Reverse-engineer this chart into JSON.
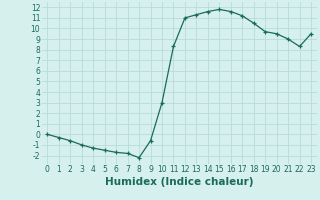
{
  "x": [
    0,
    1,
    2,
    3,
    4,
    5,
    6,
    7,
    8,
    9,
    10,
    11,
    12,
    13,
    14,
    15,
    16,
    17,
    18,
    19,
    20,
    21,
    22,
    23
  ],
  "y": [
    0.0,
    -0.3,
    -0.6,
    -1.0,
    -1.3,
    -1.5,
    -1.7,
    -1.8,
    -2.2,
    -0.6,
    3.0,
    8.3,
    11.0,
    11.3,
    11.6,
    11.8,
    11.6,
    11.2,
    10.5,
    9.7,
    9.5,
    9.0,
    8.3,
    9.5
  ],
  "xlabel": "Humidex (Indice chaleur)",
  "xlim": [
    -0.5,
    23.5
  ],
  "ylim": [
    -2.8,
    12.5
  ],
  "yticks": [
    -2,
    -1,
    0,
    1,
    2,
    3,
    4,
    5,
    6,
    7,
    8,
    9,
    10,
    11,
    12
  ],
  "xticks": [
    0,
    1,
    2,
    3,
    4,
    5,
    6,
    7,
    8,
    9,
    10,
    11,
    12,
    13,
    14,
    15,
    16,
    17,
    18,
    19,
    20,
    21,
    22,
    23
  ],
  "line_color": "#1a6b5a",
  "marker": "+",
  "bg_color": "#d6f0ee",
  "grid_color": "#b8dcd8",
  "tick_label_fontsize": 5.5,
  "xlabel_fontsize": 7.5
}
